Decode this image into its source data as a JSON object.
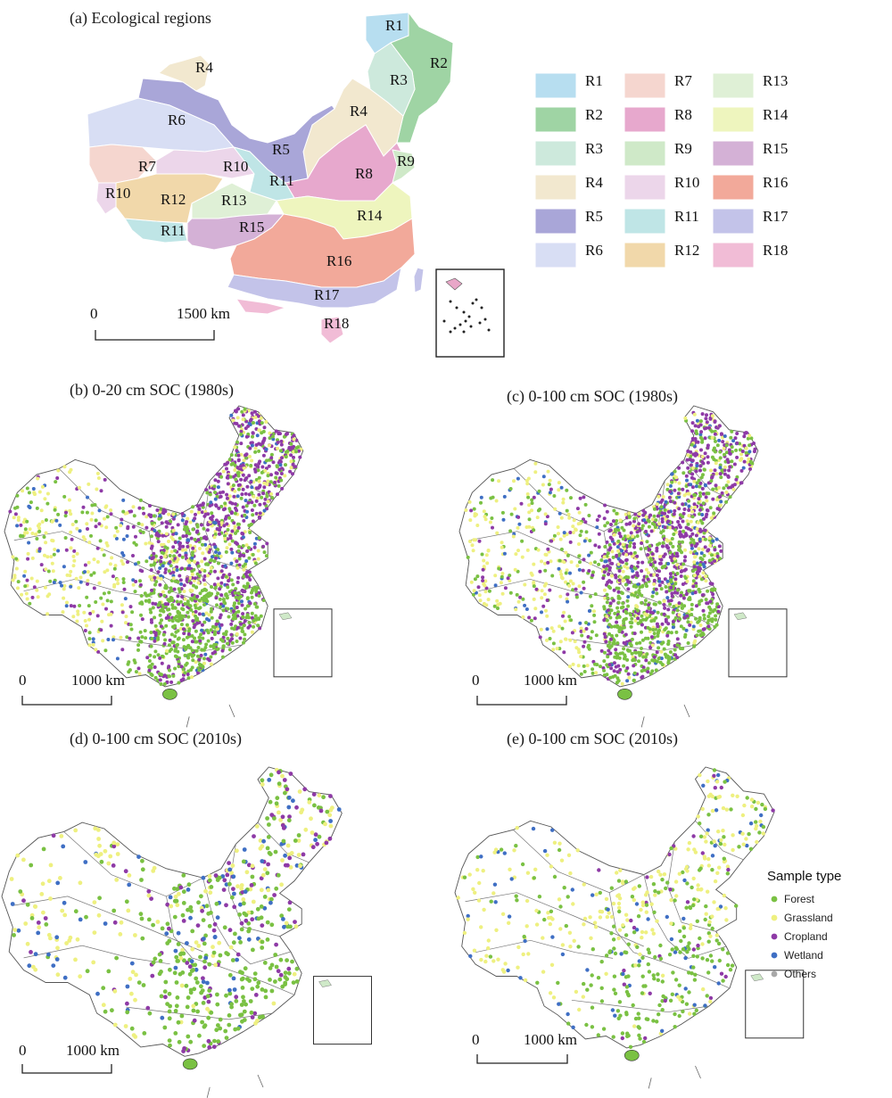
{
  "panels": {
    "a": {
      "title": "(a) Ecological regions",
      "scale_start": "0",
      "scale_end": "1500 km"
    },
    "b": {
      "title": "(b) 0-20 cm SOC (1980s)",
      "scale_start": "0",
      "scale_end": "1000 km"
    },
    "c": {
      "title": "(c) 0-100 cm SOC (1980s)",
      "scale_start": "0",
      "scale_end": "1000 km"
    },
    "d": {
      "title": "(d) 0-100 cm SOC (2010s)",
      "scale_start": "0",
      "scale_end": "1000 km"
    },
    "e": {
      "title": "(e) 0-100 cm SOC (2010s)",
      "scale_start": "0",
      "scale_end": "1000 km"
    }
  },
  "regions": [
    {
      "id": "R1",
      "color": "#b7def0"
    },
    {
      "id": "R2",
      "color": "#9fd4a4"
    },
    {
      "id": "R3",
      "color": "#cde9dc"
    },
    {
      "id": "R4",
      "color": "#f2e8cf"
    },
    {
      "id": "R5",
      "color": "#a9a6d8"
    },
    {
      "id": "R6",
      "color": "#d8def4"
    },
    {
      "id": "R7",
      "color": "#f5d6cf"
    },
    {
      "id": "R8",
      "color": "#e7a8cd"
    },
    {
      "id": "R9",
      "color": "#cfe9c8"
    },
    {
      "id": "R10",
      "color": "#ecd6ea"
    },
    {
      "id": "R11",
      "color": "#bfe5e6"
    },
    {
      "id": "R12",
      "color": "#f1d8aa"
    },
    {
      "id": "R13",
      "color": "#dff0d6"
    },
    {
      "id": "R14",
      "color": "#eef5be"
    },
    {
      "id": "R15",
      "color": "#d4b1d6"
    },
    {
      "id": "R16",
      "color": "#f2a99a"
    },
    {
      "id": "R17",
      "color": "#c3c3e9"
    },
    {
      "id": "R18",
      "color": "#f1bcd6"
    }
  ],
  "sample_legend": {
    "title": "Sample type",
    "items": [
      {
        "label": "Forest",
        "color": "#7ac143"
      },
      {
        "label": "Grassland",
        "color": "#eef080"
      },
      {
        "label": "Cropland",
        "color": "#8e3aa6"
      },
      {
        "label": "Wetland",
        "color": "#3f6fc4"
      },
      {
        "label": "Others",
        "color": "#a8a8a8"
      }
    ]
  }
}
